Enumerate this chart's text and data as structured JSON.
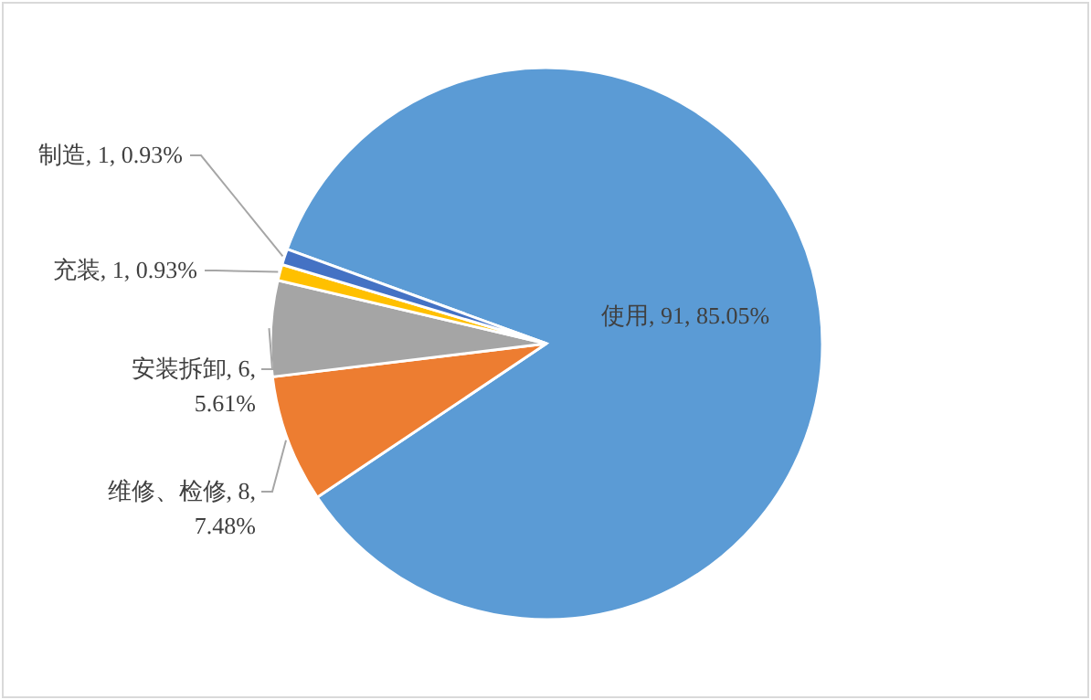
{
  "chart_data": {
    "type": "pie",
    "categories": [
      "使用",
      "维修、检修",
      "安装拆卸",
      "充装",
      "制造"
    ],
    "values": [
      91,
      8,
      6,
      1,
      1
    ],
    "colors": [
      "#5b9bd5",
      "#ed7d31",
      "#a5a5a5",
      "#ffc000",
      "#4472c4"
    ],
    "value_labels": [
      "91, 85.05%",
      "8, 7.48%",
      "6, 5.61%",
      "1, 0.93%",
      "1, 0.93%"
    ]
  }
}
